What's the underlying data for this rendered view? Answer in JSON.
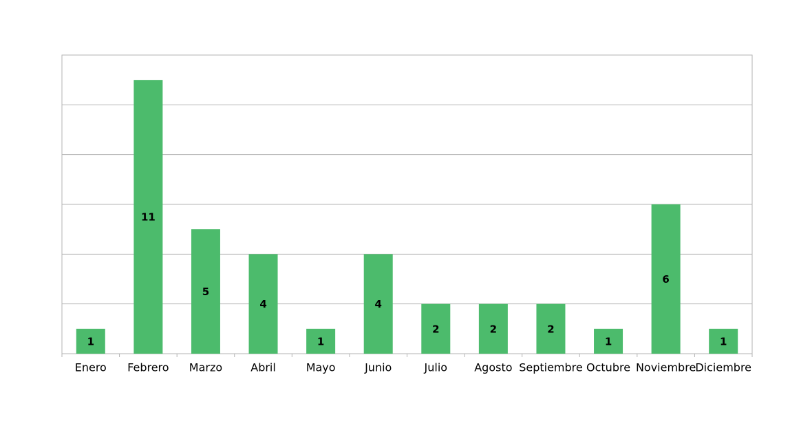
{
  "chart_data": {
    "type": "bar",
    "categories": [
      "Enero",
      "Febrero",
      "Marzo",
      "Abril",
      "Mayo",
      "Junio",
      "Julio",
      "Agosto",
      "Septiembre",
      "Octubre",
      "Noviembre",
      "Diciembre"
    ],
    "values": [
      1,
      11,
      5,
      4,
      1,
      4,
      2,
      2,
      2,
      1,
      6,
      1
    ],
    "color": "#4cbb6c",
    "ylim": [
      0,
      12
    ],
    "yticks": [
      0,
      2,
      4,
      6,
      8,
      10,
      12
    ],
    "grid": true
  }
}
